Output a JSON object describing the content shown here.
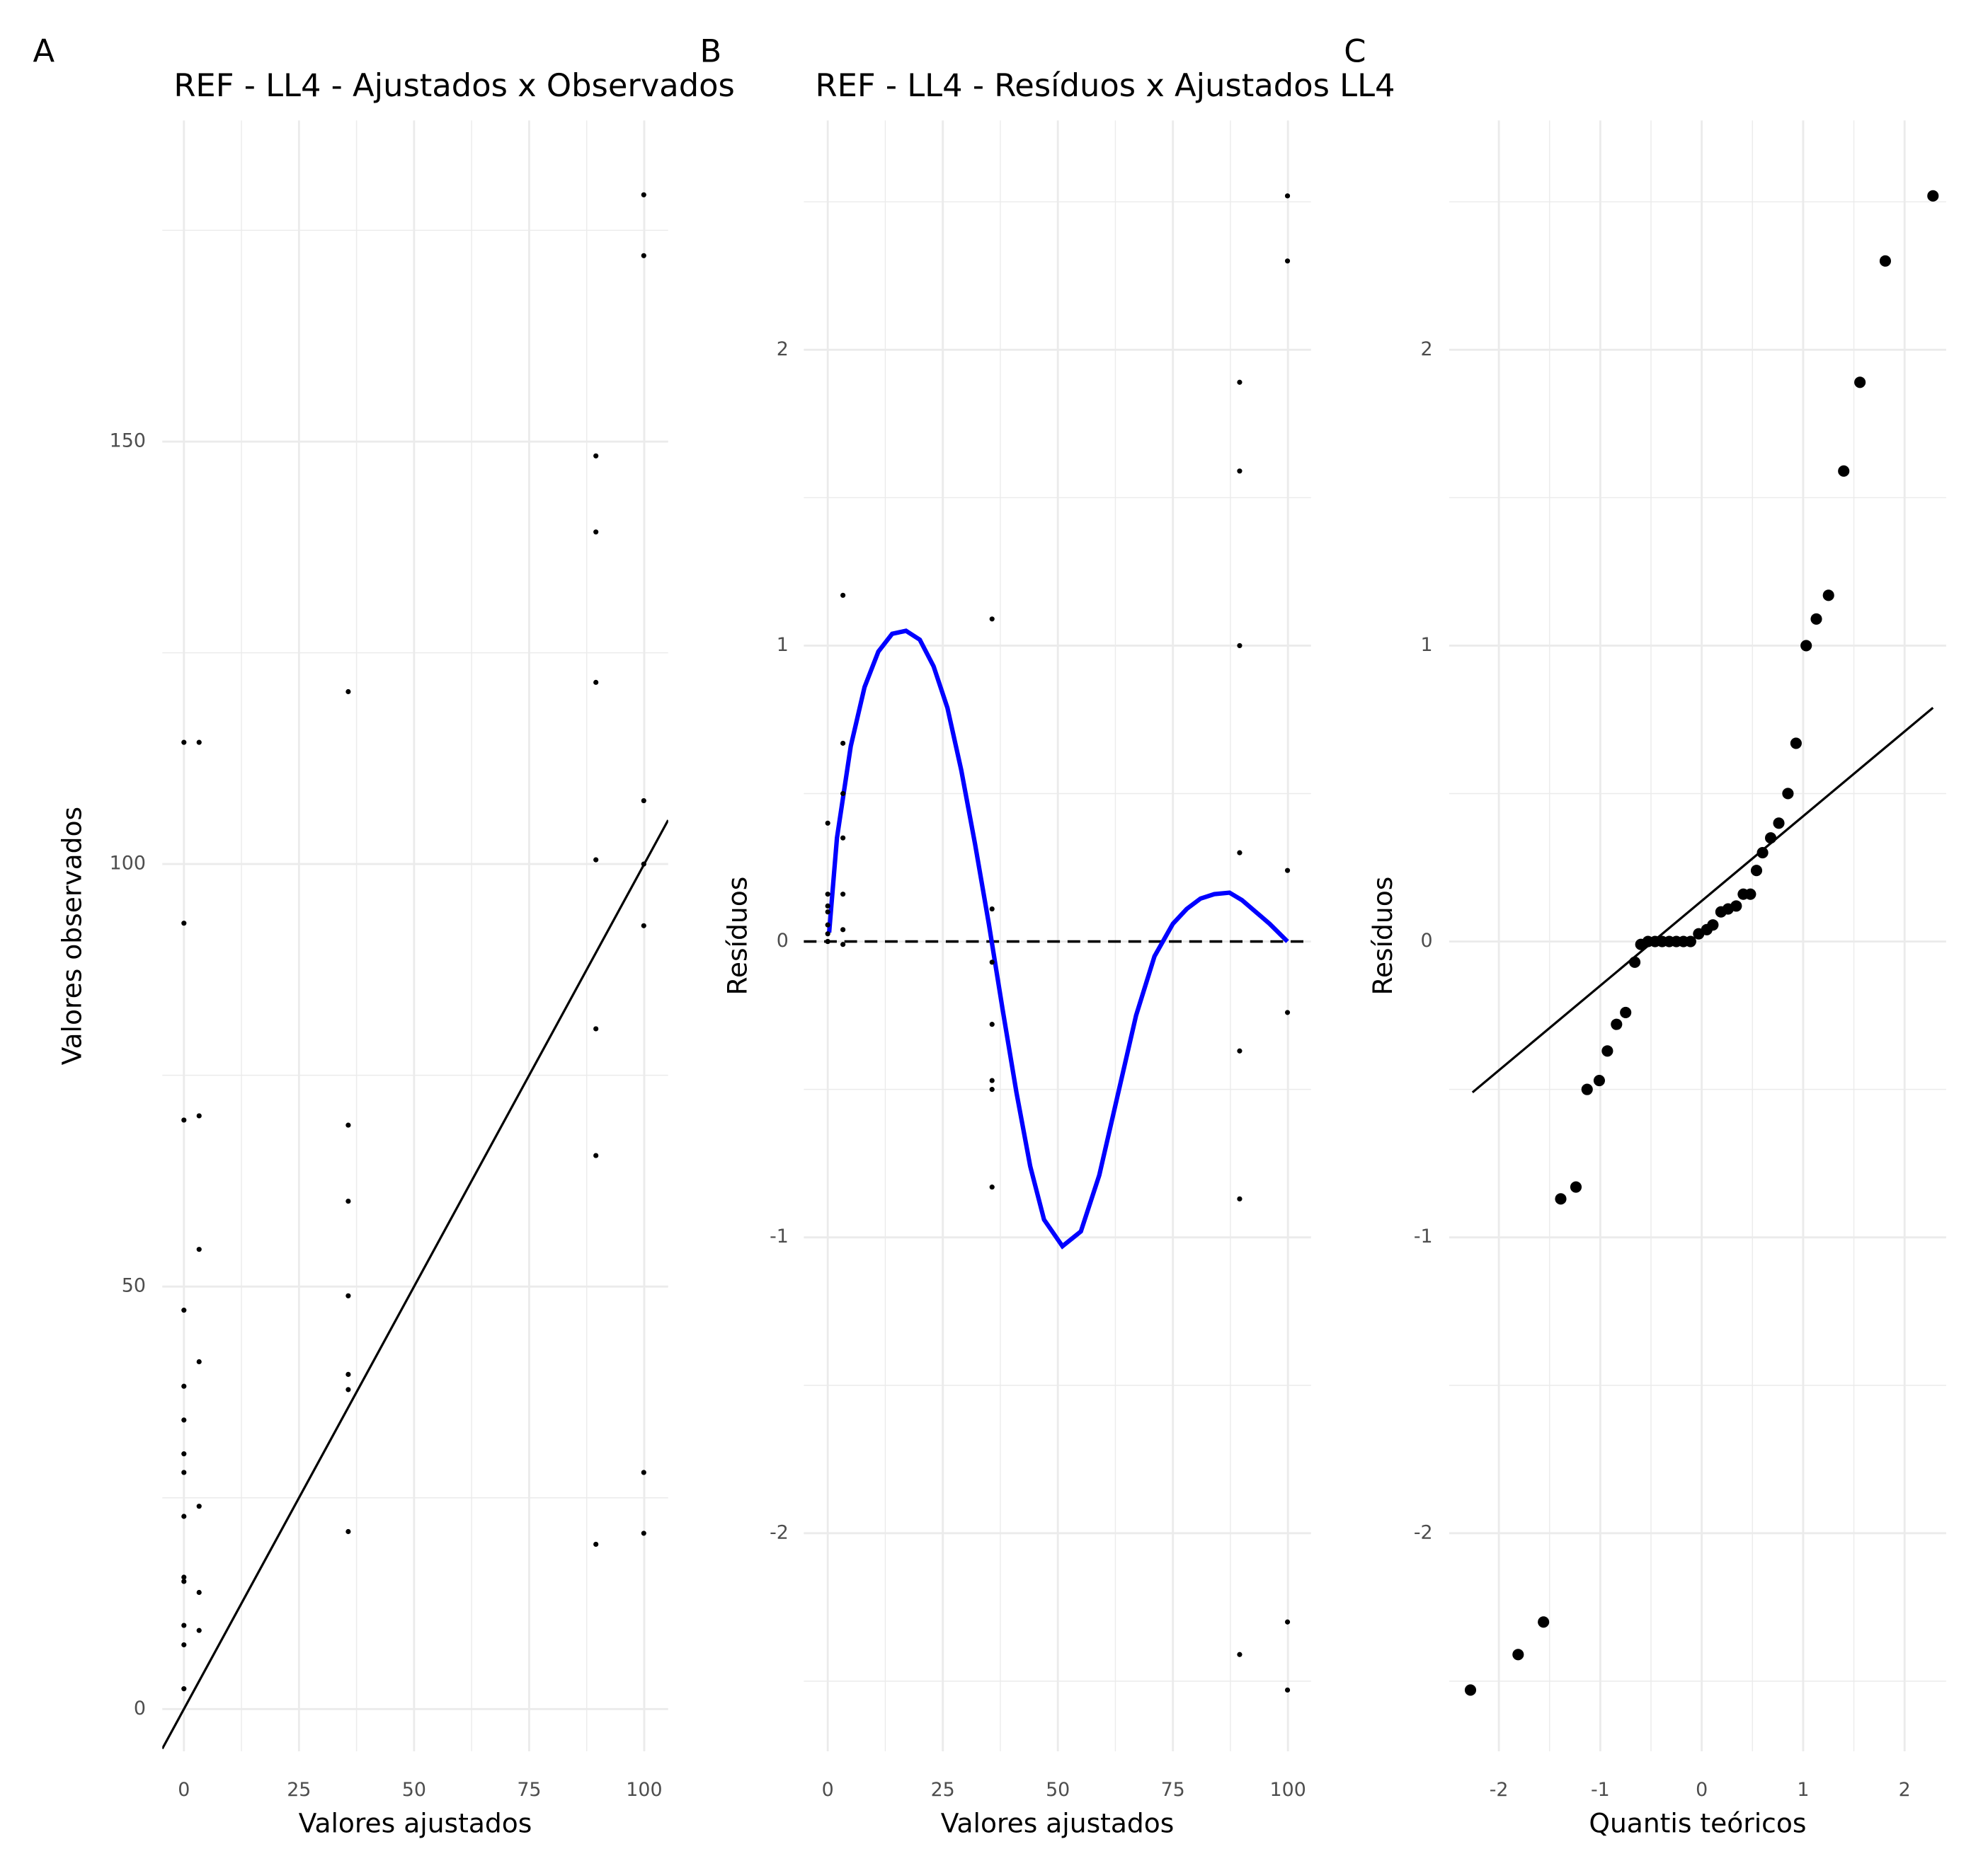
{
  "chart_data": [
    {
      "type": "scatter",
      "tag": "A",
      "title": "REF - LL4 - Ajustados x Observados",
      "xlabel": "Valores ajustados",
      "ylabel": "Valores observados",
      "xlim": [
        -4.7,
        105.2
      ],
      "ylim": [
        -5,
        188
      ],
      "xticks": [
        0,
        25,
        50,
        75,
        100
      ],
      "yticks": [
        0,
        50,
        100,
        150
      ],
      "x_minor_ticks": [
        12.5,
        37.5,
        62.5,
        87.5
      ],
      "y_minor_ticks": [
        25,
        75,
        125,
        175
      ],
      "grid": true,
      "color": "#000000",
      "x": [
        0,
        0,
        0,
        0,
        0,
        0,
        0,
        0,
        0,
        0,
        0,
        0,
        0,
        0,
        3.3,
        3.3,
        3.3,
        3.3,
        3.3,
        3.3,
        3.3,
        35.7,
        35.7,
        35.7,
        35.7,
        35.7,
        35.7,
        35.7,
        89.5,
        89.5,
        89.5,
        89.5,
        89.5,
        89.5,
        89.5,
        99.9,
        99.9,
        99.9,
        99.9,
        99.9,
        99.9,
        99.9
      ],
      "values": [
        114.4,
        93,
        69.7,
        47.2,
        38.2,
        34.2,
        30.2,
        28,
        22.8,
        15.6,
        15.1,
        9.9,
        7.6,
        2.4,
        114.4,
        70.2,
        54.4,
        41.1,
        24,
        13.8,
        9.3,
        120.4,
        69.1,
        60.1,
        48.9,
        39.6,
        37.8,
        21,
        148.3,
        139.3,
        121.5,
        100.5,
        80.5,
        65.5,
        19.5,
        179.2,
        172,
        107.5,
        100,
        92.7,
        28,
        20.8
      ],
      "reference_line": {
        "slope": 1,
        "intercept": 0,
        "color": "#000000"
      }
    },
    {
      "type": "scatter",
      "tag": "B",
      "title": "REF - LL4 - Resíduos x Ajustados LL4",
      "xlabel": "Valores ajustados",
      "ylabel": "Resíduos",
      "xlim": [
        -5.2,
        105
      ],
      "ylim": [
        -2.737,
        2.775
      ],
      "xticks": [
        0,
        25,
        50,
        75,
        100
      ],
      "yticks": [
        -2,
        -1,
        0,
        1,
        2
      ],
      "x_minor_ticks": [
        12.5,
        37.5,
        62.5,
        87.5
      ],
      "y_minor_ticks": [
        -2.5,
        -1.5,
        -0.5,
        0.5,
        1.5,
        2.5
      ],
      "grid": true,
      "color": "#000000",
      "x": [
        0,
        0,
        0,
        0,
        0,
        0,
        0,
        0,
        3.3,
        3.3,
        3.3,
        3.3,
        3.3,
        3.3,
        3.3,
        35.7,
        35.7,
        35.7,
        35.7,
        35.7,
        35.7,
        35.7,
        89.5,
        89.5,
        89.5,
        89.5,
        89.5,
        89.5,
        89.5,
        99.9,
        99.9,
        99.9,
        99.9,
        99.9,
        99.9
      ],
      "values": [
        0.4,
        0.16,
        0.12,
        0.1,
        0.056,
        0.026,
        0,
        0,
        1.17,
        0.67,
        0.5,
        0.35,
        0.16,
        0.04,
        -0.01,
        1.09,
        0.11,
        -0.07,
        -0.28,
        -0.47,
        -0.5,
        -0.83,
        1.89,
        1.59,
        1.0,
        0.3,
        -0.37,
        -0.87,
        -2.41,
        2.52,
        2.3,
        0.24,
        -0.24,
        -2.3,
        -2.53
      ],
      "hline": 0,
      "smooth": {
        "color": "#0000ff",
        "x": [
          0.3,
          2,
          5,
          8,
          11,
          14,
          17,
          20,
          23,
          26,
          29,
          32,
          35,
          38,
          41,
          44,
          47,
          51,
          55,
          59,
          63,
          67,
          71,
          75,
          78,
          81,
          84,
          87.3,
          90,
          93,
          96,
          99.9
        ],
        "values": [
          0.03,
          0.35,
          0.66,
          0.86,
          0.98,
          1.04,
          1.05,
          1.02,
          0.93,
          0.79,
          0.58,
          0.33,
          0.06,
          -0.23,
          -0.51,
          -0.76,
          -0.94,
          -1.03,
          -0.98,
          -0.79,
          -0.52,
          -0.25,
          -0.05,
          0.06,
          0.11,
          0.145,
          0.16,
          0.165,
          0.14,
          0.1,
          0.06,
          0
        ]
      }
    },
    {
      "type": "scatter",
      "tag": "C",
      "xlabel": "Quantis teóricos",
      "ylabel": "Resíduos",
      "xlim": [
        -2.49,
        2.41
      ],
      "ylim": [
        -2.737,
        2.775
      ],
      "xticks": [
        -2,
        -1,
        0,
        1,
        2
      ],
      "yticks": [
        -2,
        -1,
        0,
        1,
        2
      ],
      "x_minor_ticks": [
        -1.5,
        -0.5,
        0.5,
        1.5
      ],
      "y_minor_ticks": [
        -2.5,
        -1.5,
        -0.5,
        0.5,
        1.5,
        2.5
      ],
      "grid": true,
      "color": "#000000",
      "x": [
        -2.28,
        -1.81,
        -1.56,
        -1.39,
        -1.24,
        -1.13,
        -1.01,
        -0.93,
        -0.84,
        -0.75,
        -0.66,
        -0.6,
        -0.53,
        -0.46,
        -0.39,
        -0.32,
        -0.25,
        -0.18,
        -0.11,
        -0.03,
        0.05,
        0.11,
        0.19,
        0.26,
        0.34,
        0.41,
        0.48,
        0.54,
        0.6,
        0.68,
        0.76,
        0.85,
        0.93,
        1.03,
        1.13,
        1.25,
        1.4,
        1.56,
        1.81,
        2.28
      ],
      "values": [
        -2.53,
        -2.41,
        -2.3,
        -0.87,
        -0.83,
        -0.5,
        -0.47,
        -0.37,
        -0.28,
        -0.24,
        -0.07,
        -0.01,
        0,
        0,
        0,
        0,
        0,
        0,
        0,
        0.026,
        0.04,
        0.056,
        0.1,
        0.11,
        0.12,
        0.16,
        0.16,
        0.24,
        0.3,
        0.35,
        0.4,
        0.5,
        0.67,
        1.0,
        1.09,
        1.17,
        1.59,
        1.89,
        2.3,
        2.52
      ],
      "qq_line": {
        "x": [
          -2.26,
          2.28
        ],
        "values": [
          -0.51,
          0.79
        ],
        "color": "#000000"
      }
    }
  ]
}
